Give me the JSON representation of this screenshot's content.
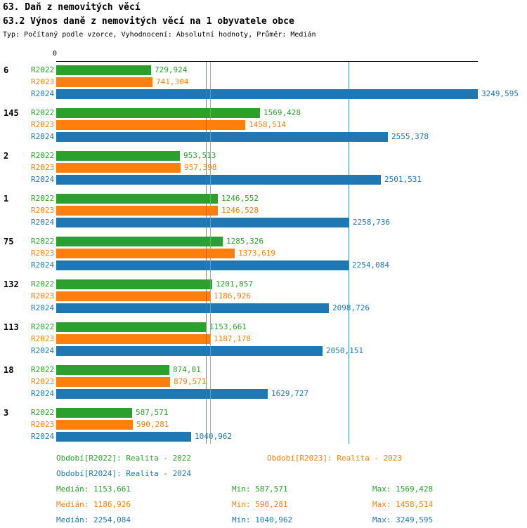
{
  "header": {
    "title1": "63. Daň z nemovitých věcí",
    "title2": "63.2 Výnos daně z nemovitých věcí na 1 obyvatele obce",
    "meta": "Typ: Počítaný podle vzorce, Vyhodnocení: Absolutní hodnoty, Průměr: Medián"
  },
  "colors": {
    "r2022": "#2ca02c",
    "r2023": "#ff7f0e",
    "r2024": "#1f77b4",
    "axis": "#000000"
  },
  "chart_data": {
    "type": "bar",
    "orientation": "horizontal",
    "x_axis_zero_label": "0",
    "xlim": [
      0,
      3249.595
    ],
    "grid": false,
    "legend_position": "bottom",
    "series_labels": [
      "R2022",
      "R2023",
      "R2024"
    ],
    "series_color_keys": [
      "r2022",
      "r2023",
      "r2024"
    ],
    "median_lines": [
      1153.661,
      1186.926,
      2254.084
    ],
    "groups": [
      {
        "label": "6",
        "values": [
          729.924,
          741.304,
          3249.595
        ],
        "display": [
          "729,924",
          "741,304",
          "3249,595"
        ]
      },
      {
        "label": "145",
        "values": [
          1569.428,
          1458.514,
          2555.378
        ],
        "display": [
          "1569,428",
          "1458,514",
          "2555,378"
        ]
      },
      {
        "label": "2",
        "values": [
          953.513,
          957.398,
          2501.531
        ],
        "display": [
          "953,513",
          "957,398",
          "2501,531"
        ]
      },
      {
        "label": "1",
        "values": [
          1246.552,
          1246.528,
          2258.736
        ],
        "display": [
          "1246,552",
          "1246,528",
          "2258,736"
        ]
      },
      {
        "label": "75",
        "values": [
          1285.326,
          1373.619,
          2254.084
        ],
        "display": [
          "1285,326",
          "1373,619",
          "2254,084"
        ]
      },
      {
        "label": "132",
        "values": [
          1201.857,
          1186.926,
          2098.726
        ],
        "display": [
          "1201,857",
          "1186,926",
          "2098,726"
        ]
      },
      {
        "label": "113",
        "values": [
          1153.661,
          1187.178,
          2050.151
        ],
        "display": [
          "1153,661",
          "1187,178",
          "2050,151"
        ]
      },
      {
        "label": "18",
        "values": [
          874.01,
          879.571,
          1629.727
        ],
        "display": [
          "874,01",
          "879,571",
          "1629,727"
        ]
      },
      {
        "label": "3",
        "values": [
          587.571,
          590.281,
          1040.962
        ],
        "display": [
          "587,571",
          "590,281",
          "1040,962"
        ]
      }
    ]
  },
  "legend": [
    {
      "label": "Období[R2022]: Realita - 2022",
      "color_key": "r2022"
    },
    {
      "label": "Období[R2023]: Realita - 2023",
      "color_key": "r2023"
    },
    {
      "label": "Období[R2024]: Realita - 2024",
      "color_key": "r2024"
    }
  ],
  "stats": [
    {
      "median": "Medián: 1153,661",
      "min": "Min: 587,571",
      "max": "Max: 1569,428",
      "color_key": "r2022"
    },
    {
      "median": "Medián: 1186,926",
      "min": "Min: 590,281",
      "max": "Max: 1458,514",
      "color_key": "r2023"
    },
    {
      "median": "Medián: 2254,084",
      "min": "Min: 1040,962",
      "max": "Max: 3249,595",
      "color_key": "r2024"
    }
  ]
}
